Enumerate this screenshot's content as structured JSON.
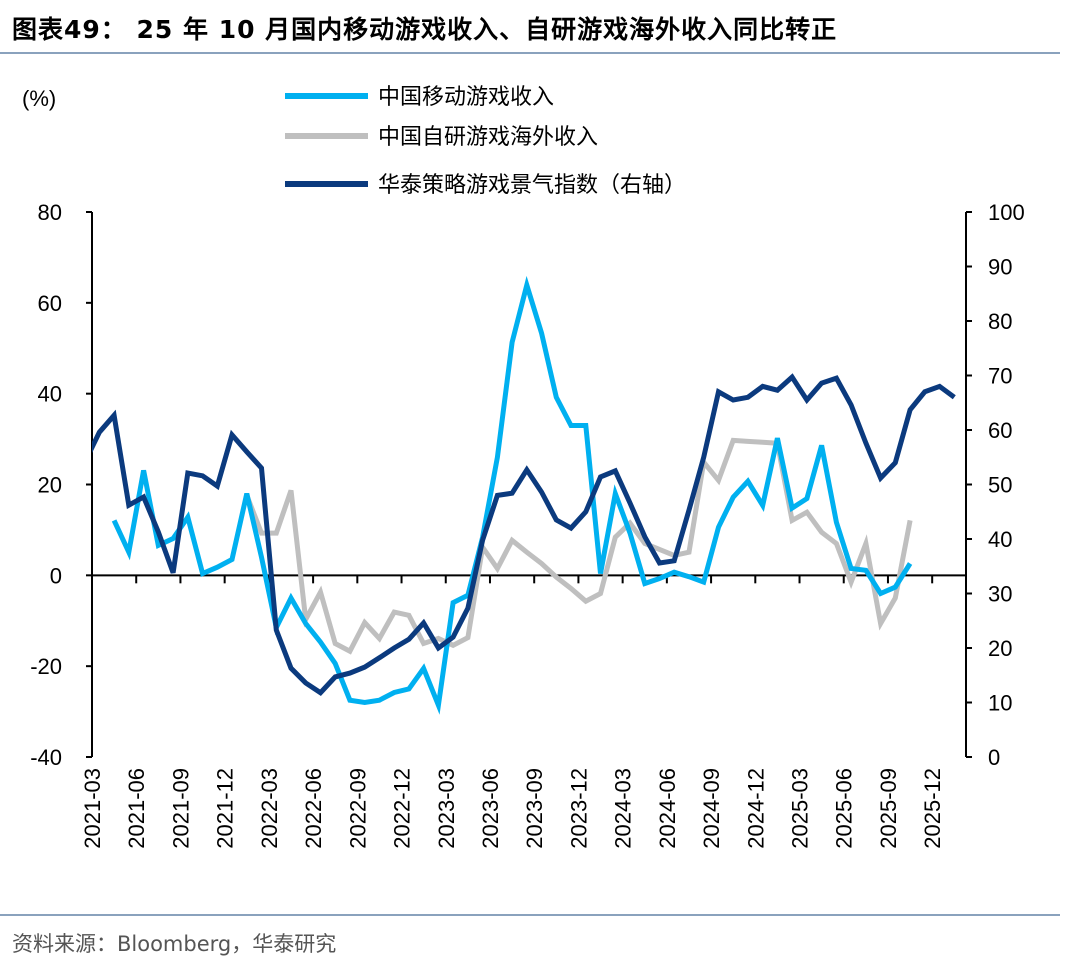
{
  "header": {
    "title": "图表49：  25 年 10 月国内移动游戏收入、自研游戏海外收入同比转正"
  },
  "footer": {
    "source": "资料来源：Bloomberg，华泰研究"
  },
  "chart_data": {
    "type": "line",
    "title": "25 年 10 月国内移动游戏收入、自研游戏海外收入同比转正",
    "ylabel": "(%)",
    "ylim": [
      -40,
      80
    ],
    "yticks": [
      "80",
      "60",
      "40",
      "20",
      "0",
      "-20",
      "-40"
    ],
    "y2lim": [
      0,
      100
    ],
    "y2ticks": [
      "100",
      "90",
      "80",
      "70",
      "60",
      "50",
      "40",
      "30",
      "20",
      "10",
      "0"
    ],
    "legend_position": "top",
    "xtick_labels": [
      "2021-03",
      "2021-06",
      "2021-09",
      "2021-12",
      "2022-03",
      "2022-06",
      "2022-09",
      "2022-12",
      "2023-03",
      "2023-06",
      "2023-09",
      "2023-12",
      "2024-03",
      "2024-06",
      "2024-09",
      "2024-12",
      "2025-03",
      "2025-06",
      "2025-09",
      "2025-12"
    ],
    "x_start": "2021-03",
    "series": [
      {
        "name": "中国移动游戏收入",
        "axis": "left",
        "color": "#00B0F0",
        "start": "2021-04",
        "values": [
          12.1,
          5.1,
          23.1,
          6.6,
          8.1,
          12.8,
          0.4,
          1.8,
          3.5,
          18,
          4,
          -11.5,
          -5,
          -10.6,
          -14.7,
          -19.4,
          -27.5,
          -28,
          -27.5,
          -25.8,
          -25,
          -20.5,
          -28.6,
          -6,
          -4.4,
          8.4,
          26,
          51.3,
          63.9,
          53.3,
          39.2,
          33,
          33,
          0.4,
          18,
          9.3,
          -1.8,
          -0.7,
          0.7,
          -0.3,
          -1.5,
          10.6,
          17.2,
          20.7,
          15.4,
          30.2,
          14.8,
          16.9,
          28.6,
          11.7,
          1.5,
          1.1,
          -4,
          -2.6,
          2.6
        ]
      },
      {
        "name": "中国自研游戏海外收入",
        "axis": "left",
        "color": "#BFBFBF",
        "start": "2022-01",
        "values": [
          17.6,
          9.3,
          9.3,
          18.7,
          -9.7,
          -3.7,
          -15,
          -16.7,
          -10.4,
          -13.9,
          -8.1,
          -8.8,
          -15,
          -13.9,
          -15.4,
          -13.7,
          6.2,
          1.5,
          7.7,
          5.1,
          2.6,
          -0.4,
          -2.9,
          -5.7,
          -4,
          8.4,
          11.5,
          7,
          5.7,
          4.4,
          5.1,
          24.9,
          20.9,
          29.7,
          29.5,
          29.3,
          29.1,
          12.1,
          13.9,
          9.5,
          7,
          -1.5,
          7,
          -10.6,
          -5,
          12.1
        ]
      },
      {
        "name": "华泰策略游戏景气指数（右轴）",
        "axis": "right",
        "color": "#0B3A7E",
        "start": "2021-02",
        "values": [
          54,
          59.6,
          62.7,
          46.2,
          47.7,
          41.3,
          33.8,
          52.1,
          51.6,
          49.7,
          59.1,
          56,
          53,
          23.3,
          16.3,
          13.6,
          11.8,
          14.7,
          15.4,
          16.5,
          18.2,
          20,
          21.6,
          24.6,
          20,
          22,
          27.3,
          39.8,
          48,
          48.4,
          52.7,
          48.6,
          43.5,
          42,
          45,
          51.4,
          52.5,
          46.6,
          40.4,
          35.6,
          36,
          45.3,
          55,
          67,
          65.5,
          66,
          68,
          67.3,
          69.7,
          65.5,
          68.6,
          69.5,
          64.6,
          57.6,
          51.2,
          54,
          63.7,
          67,
          68,
          66
        ]
      }
    ]
  }
}
